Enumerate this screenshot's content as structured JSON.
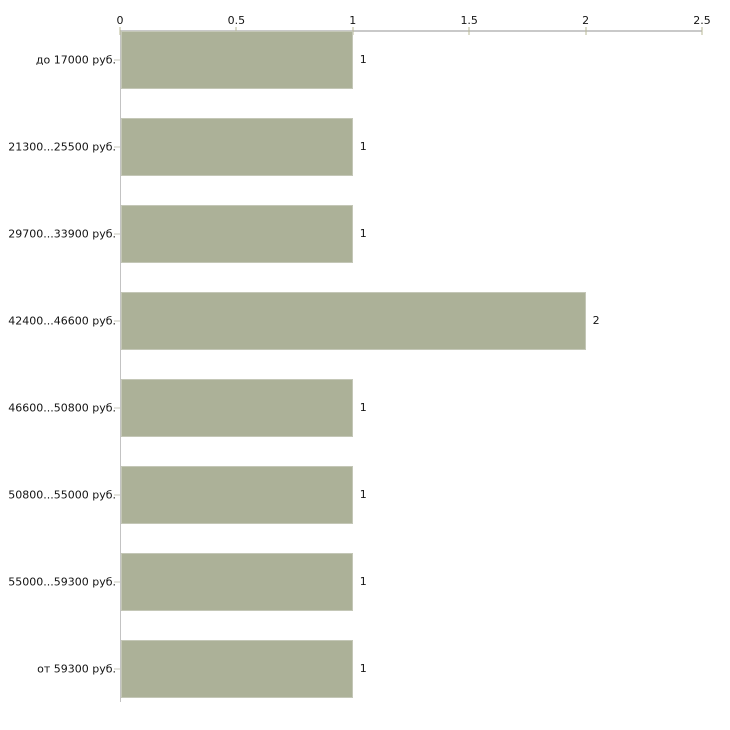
{
  "chart_data": {
    "type": "bar",
    "orientation": "horizontal",
    "title": "",
    "categories": [
      "до 17000 руб.",
      "21300...25500 руб.",
      "29700...33900 руб.",
      "42400...46600 руб.",
      "46600...50800 руб.",
      "50800...55000 руб.",
      "55000...59300 руб.",
      "от 59300 руб."
    ],
    "values": [
      1,
      1,
      1,
      2,
      1,
      1,
      1,
      1
    ],
    "value_labels": [
      "1",
      "1",
      "1",
      "2",
      "1",
      "1",
      "1",
      "1"
    ],
    "x_ticks": [
      0,
      0.5,
      1,
      1.5,
      2,
      2.5
    ],
    "x_tick_labels": [
      "0",
      "0.5",
      "1",
      "1.5",
      "2",
      "2.5"
    ],
    "xlim": [
      0,
      2.5
    ],
    "xlabel": "",
    "ylabel": "",
    "axis_position": "top",
    "grid": false,
    "legend": null,
    "colors": {
      "bar_fill": "#acb198",
      "bar_border": "#c4c7b7",
      "axis_line": "#c9c9c9",
      "x_tick_mark": "#b9b996",
      "category_tick_mark": "#c9c9bc",
      "text": "#141414",
      "background": "#ffffff"
    }
  }
}
